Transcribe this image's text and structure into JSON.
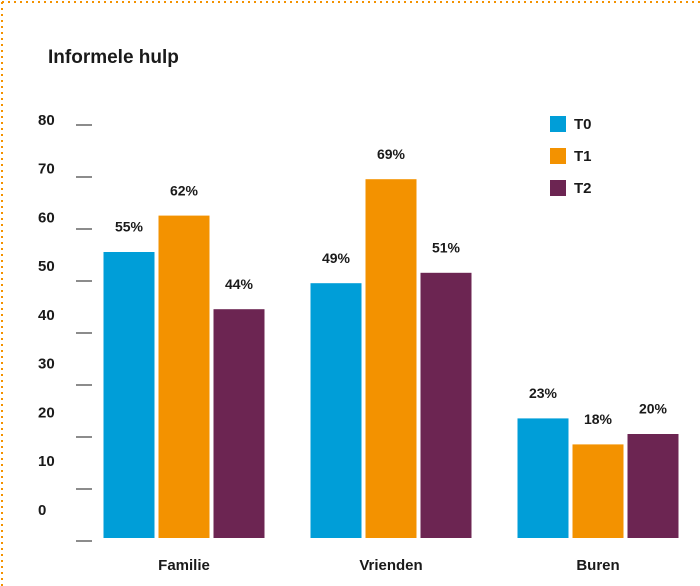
{
  "chart_data": {
    "type": "bar",
    "title": "Informele hulp",
    "categories": [
      "Familie",
      "Vrienden",
      "Buren"
    ],
    "series": [
      {
        "name": "T0",
        "color": "#009ed8",
        "values": [
          55,
          49,
          23
        ],
        "value_labels": [
          "55%",
          "49%",
          "23%"
        ]
      },
      {
        "name": "T1",
        "color": "#f39200",
        "values": [
          62,
          69,
          18
        ],
        "value_labels": [
          "62%",
          "69%",
          "18%"
        ]
      },
      {
        "name": "T2",
        "color": "#6c2552",
        "values": [
          44,
          51,
          20
        ],
        "value_labels": [
          "44%",
          "51%",
          "20%"
        ]
      }
    ],
    "ylim": [
      0,
      80
    ],
    "yticks": [
      0,
      10,
      20,
      30,
      40,
      50,
      60,
      70,
      80
    ],
    "legend": "top-right"
  }
}
